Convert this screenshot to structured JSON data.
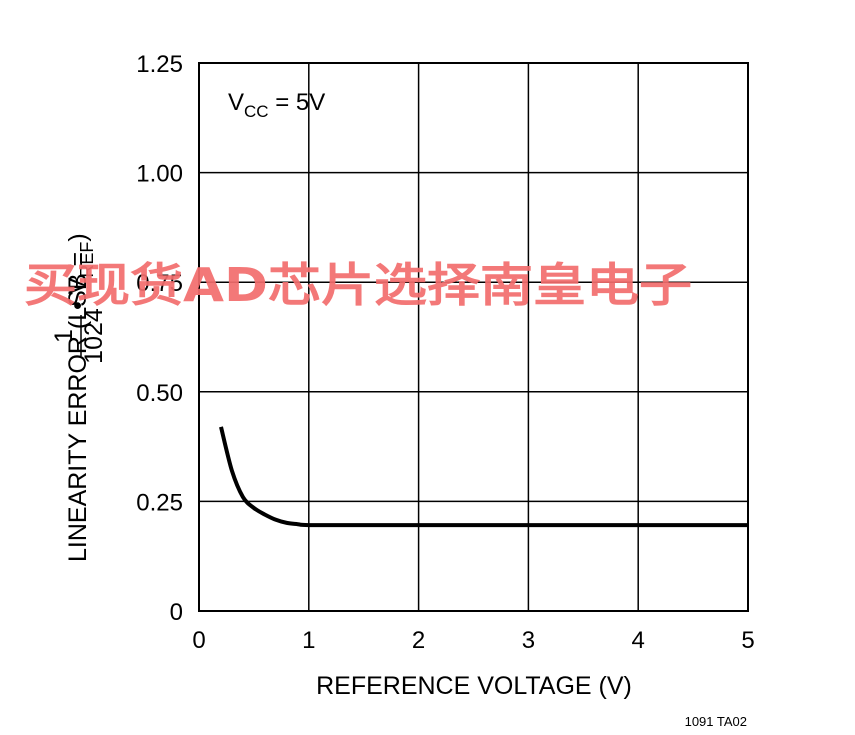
{
  "chart_data": {
    "type": "line",
    "xlabel": "REFERENCE VOLTAGE (V)",
    "ylabel": {
      "main": "LINEARITY ERROR (LSB = ",
      "frac_num": "1",
      "frac_den": "1024",
      "tail_sym": "• V",
      "tail_sub": "REF",
      "close": ")"
    },
    "annotation": {
      "base": "V",
      "sub": "CC",
      "rest": " = 5V"
    },
    "figure_code": "1091 TA02",
    "watermark": "买现货AD芯片选择南皇电子",
    "xlim": [
      0,
      5
    ],
    "ylim": [
      0,
      1.25
    ],
    "x_ticks": [
      "0",
      "1",
      "2",
      "3",
      "4",
      "5"
    ],
    "y_ticks": [
      "0",
      "0.25",
      "0.50",
      "0.75",
      "1.00",
      "1.25"
    ],
    "grid": true,
    "series": [
      {
        "x": [
          0.2,
          0.3,
          0.4,
          0.5,
          0.6,
          0.7,
          0.8,
          0.9,
          1.0,
          1.5,
          2.0,
          3.0,
          4.0,
          5.0
        ],
        "y": [
          0.42,
          0.32,
          0.26,
          0.235,
          0.22,
          0.208,
          0.201,
          0.198,
          0.196,
          0.196,
          0.196,
          0.196,
          0.196,
          0.196
        ]
      }
    ],
    "colors": {
      "line": "#000000",
      "grid": "#000000",
      "watermark": "#f26d6d"
    }
  }
}
